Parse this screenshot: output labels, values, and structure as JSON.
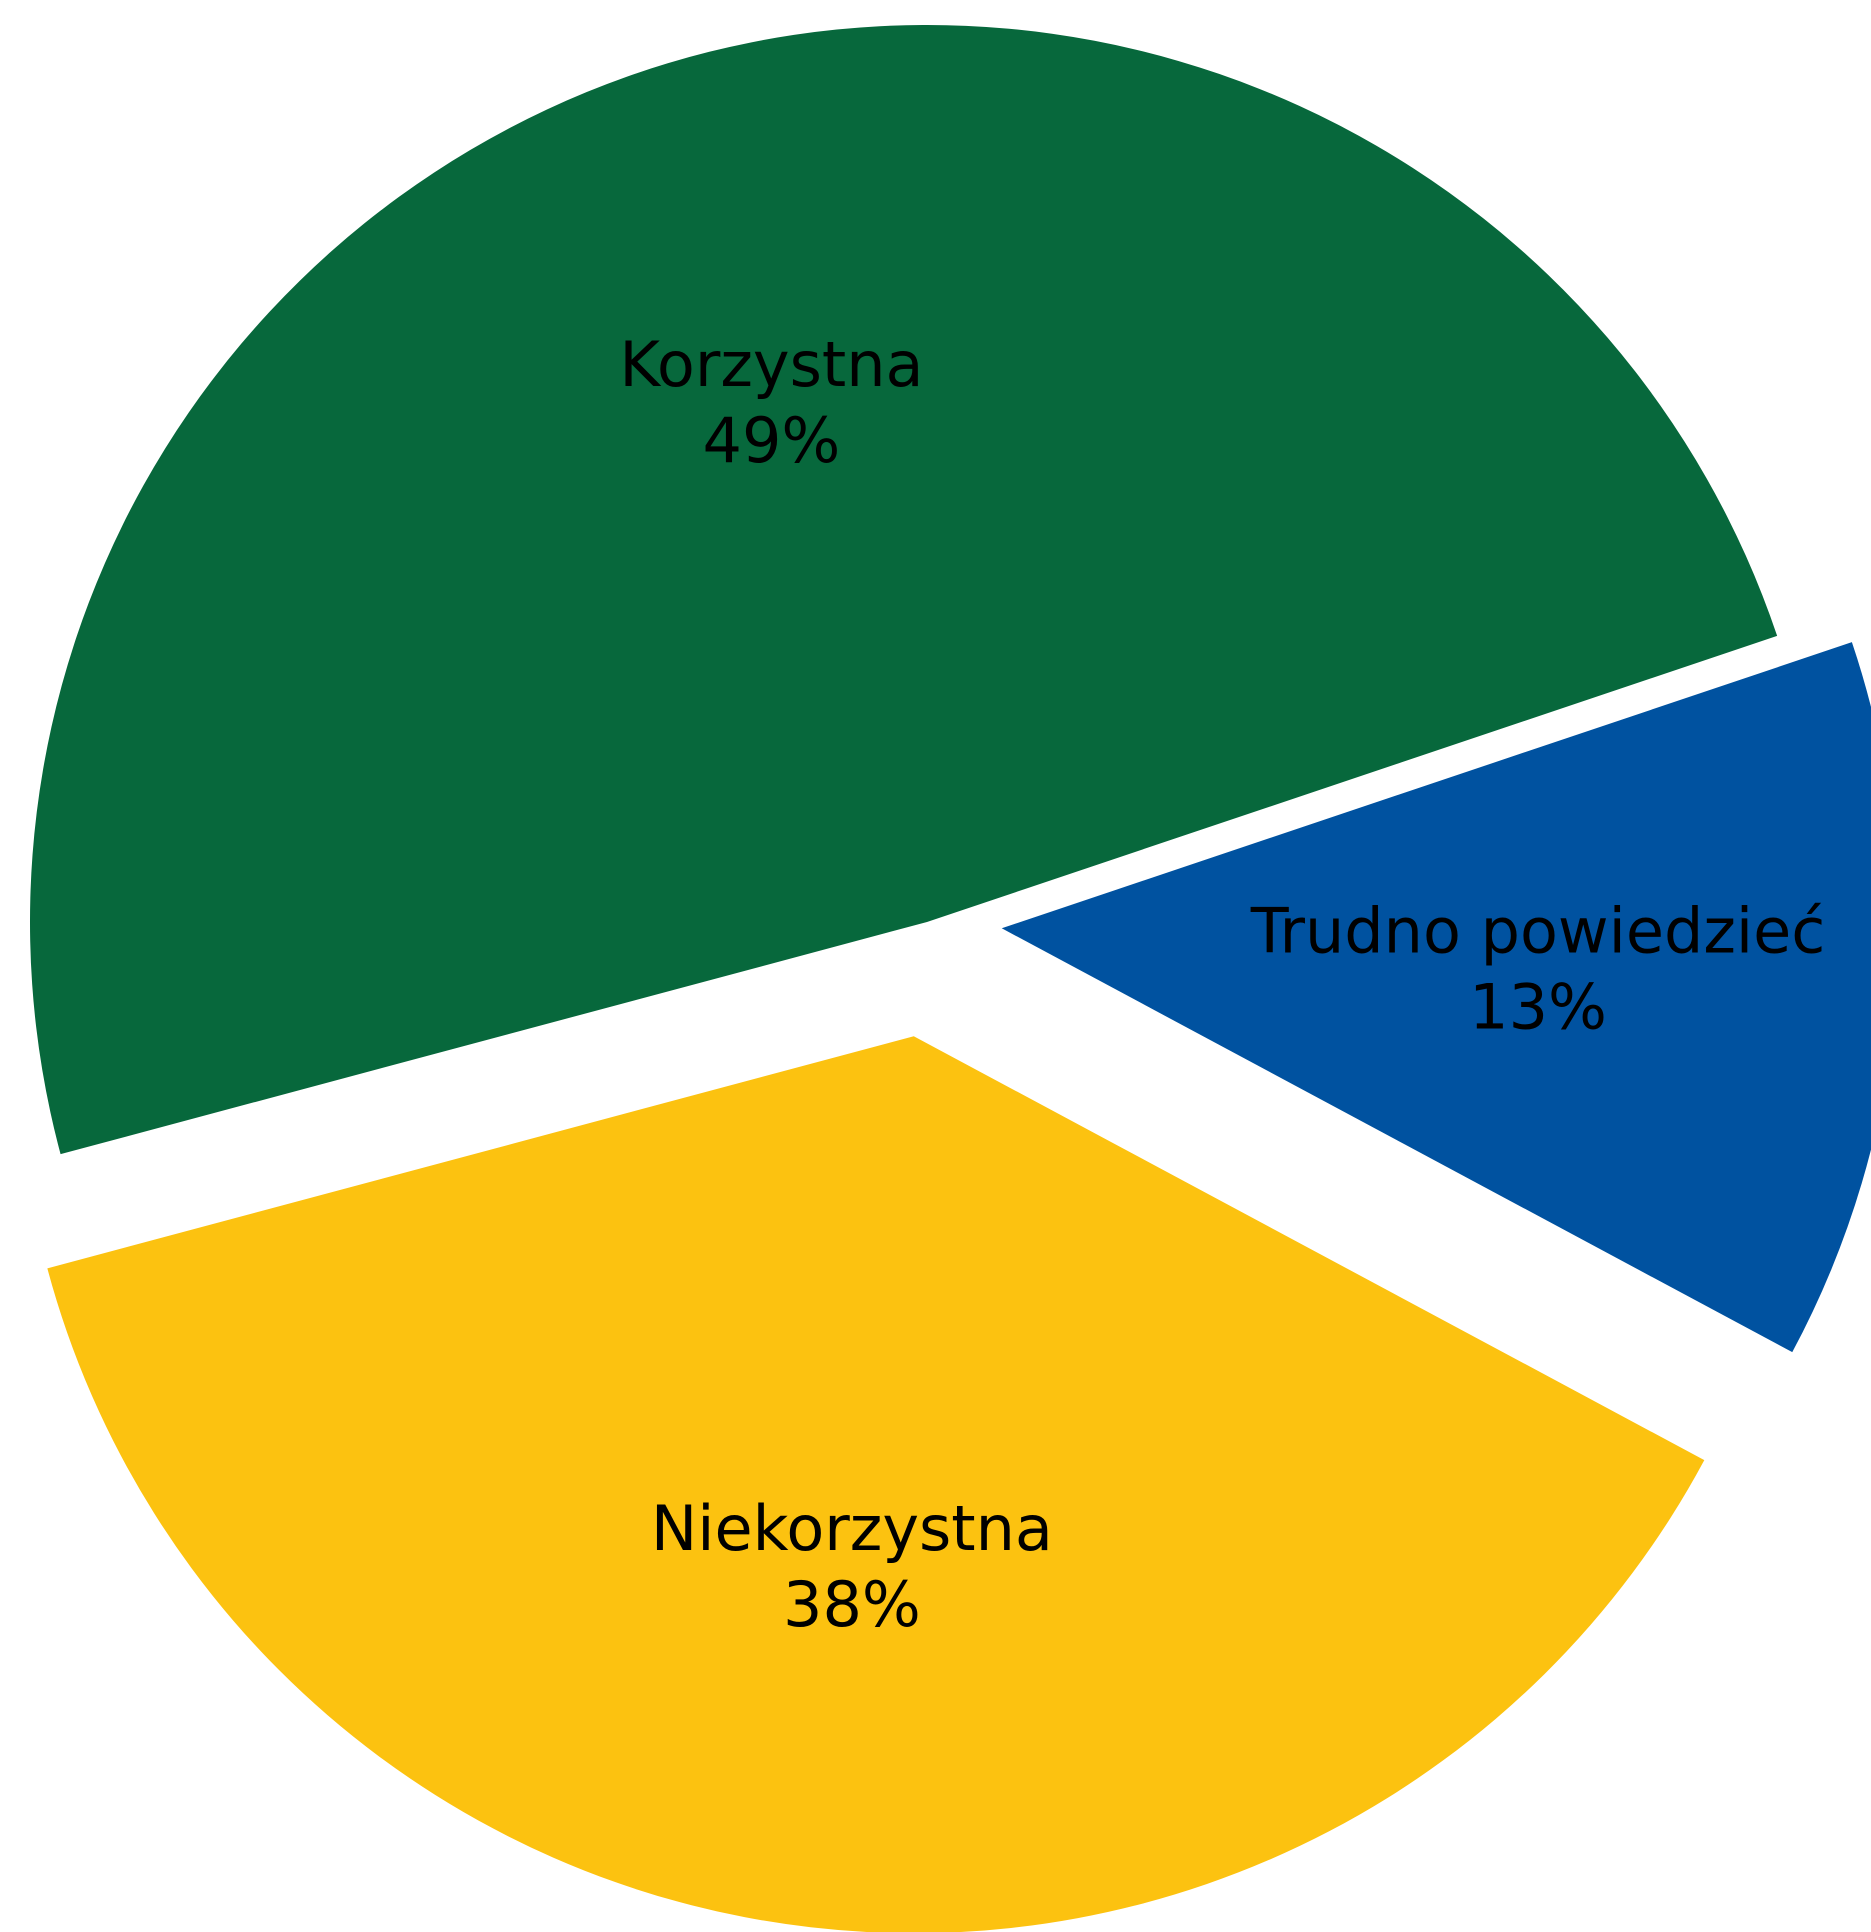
{
  "chart_data": {
    "type": "pie",
    "categories": [
      "Korzystna",
      "Trudno powiedzieć",
      "Niekorzystna"
    ],
    "values": [
      49,
      13,
      38
    ],
    "value_labels": [
      "49%",
      "13%",
      "38%"
    ],
    "colors": [
      "#07683c",
      "#0052a0",
      "#fcc210"
    ]
  }
}
